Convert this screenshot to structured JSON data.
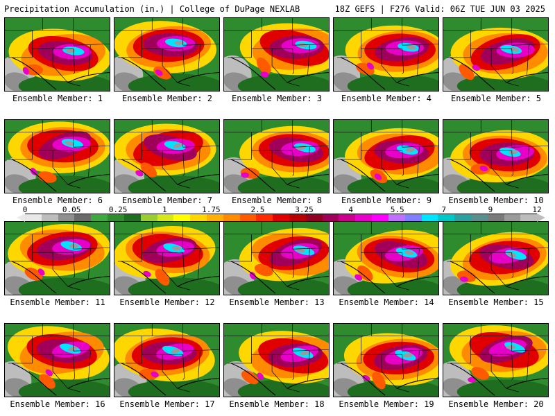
{
  "header": {
    "title_left": "Precipitation Accumulation (in.) | College of DuPage NEXLAB",
    "title_right": "18Z GEFS | F276 Valid: 06Z TUE JUN 03 2025"
  },
  "colorbar": {
    "labels": [
      "0",
      "0.05",
      "0.25",
      "1",
      "1.75",
      "2.5",
      "3.25",
      "4",
      "5.5",
      "7",
      "9",
      "12"
    ],
    "colors": [
      "#e8e8e8",
      "#bdbdbd",
      "#8f8f8f",
      "#6a6a6a",
      "#3fa83f",
      "#2e8b2e",
      "#1f6e1f",
      "#9acd32",
      "#d6e81a",
      "#ffff00",
      "#ffd700",
      "#ffb000",
      "#ff8c00",
      "#ff5a00",
      "#ff2a00",
      "#e00000",
      "#b80000",
      "#900020",
      "#a0005a",
      "#c8008c",
      "#e600c8",
      "#ff00ff",
      "#c070ff",
      "#7f7fff",
      "#00e5ff",
      "#00c8c8",
      "#2ca0a0",
      "#5a8f8f",
      "#7a7a7a",
      "#9a9a9a",
      "#bcbcbc"
    ]
  },
  "members": [
    {
      "caption": "Ensemble Member: 1"
    },
    {
      "caption": "Ensemble Member: 2"
    },
    {
      "caption": "Ensemble Member: 3"
    },
    {
      "caption": "Ensemble Member: 4"
    },
    {
      "caption": "Ensemble Member: 5"
    },
    {
      "caption": "Ensemble Member: 6"
    },
    {
      "caption": "Ensemble Member: 7"
    },
    {
      "caption": "Ensemble Member: 8"
    },
    {
      "caption": "Ensemble Member: 9"
    },
    {
      "caption": "Ensemble Member: 10"
    },
    {
      "caption": "Ensemble Member: 11"
    },
    {
      "caption": "Ensemble Member: 12"
    },
    {
      "caption": "Ensemble Member: 13"
    },
    {
      "caption": "Ensemble Member: 14"
    },
    {
      "caption": "Ensemble Member: 15"
    },
    {
      "caption": "Ensemble Member: 16"
    },
    {
      "caption": "Ensemble Member: 17"
    },
    {
      "caption": "Ensemble Member: 18"
    },
    {
      "caption": "Ensemble Member: 19"
    },
    {
      "caption": "Ensemble Member: 20"
    }
  ]
}
